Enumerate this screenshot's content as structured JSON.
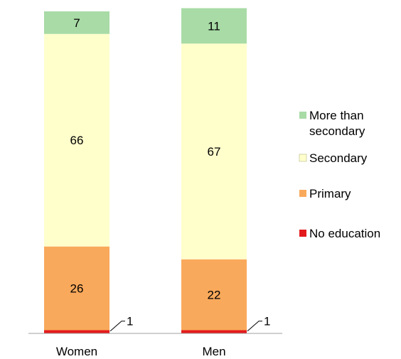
{
  "chart_data": {
    "type": "bar",
    "stacked": true,
    "categories": [
      "Women",
      "Men"
    ],
    "series": [
      {
        "name": "No education",
        "values": [
          1,
          1
        ],
        "color": "#e31a1c"
      },
      {
        "name": "Primary",
        "values": [
          26,
          22
        ],
        "color": "#f9a95b"
      },
      {
        "name": "Secondary",
        "values": [
          66,
          67
        ],
        "color": "#ffffcc"
      },
      {
        "name": "More than secondary",
        "values": [
          7,
          11
        ],
        "color": "#a8dba6"
      }
    ],
    "legend": {
      "position": "right",
      "order": [
        "More than secondary",
        "Secondary",
        "Primary",
        "No education"
      ],
      "labels": [
        [
          "More than",
          "secondary"
        ],
        [
          "Secondary"
        ],
        [
          "Primary"
        ],
        [
          "No education"
        ]
      ]
    },
    "data_labels": true,
    "title": "",
    "xlabel": "",
    "ylabel": "",
    "ylim": [
      0,
      100
    ],
    "grid": false
  }
}
